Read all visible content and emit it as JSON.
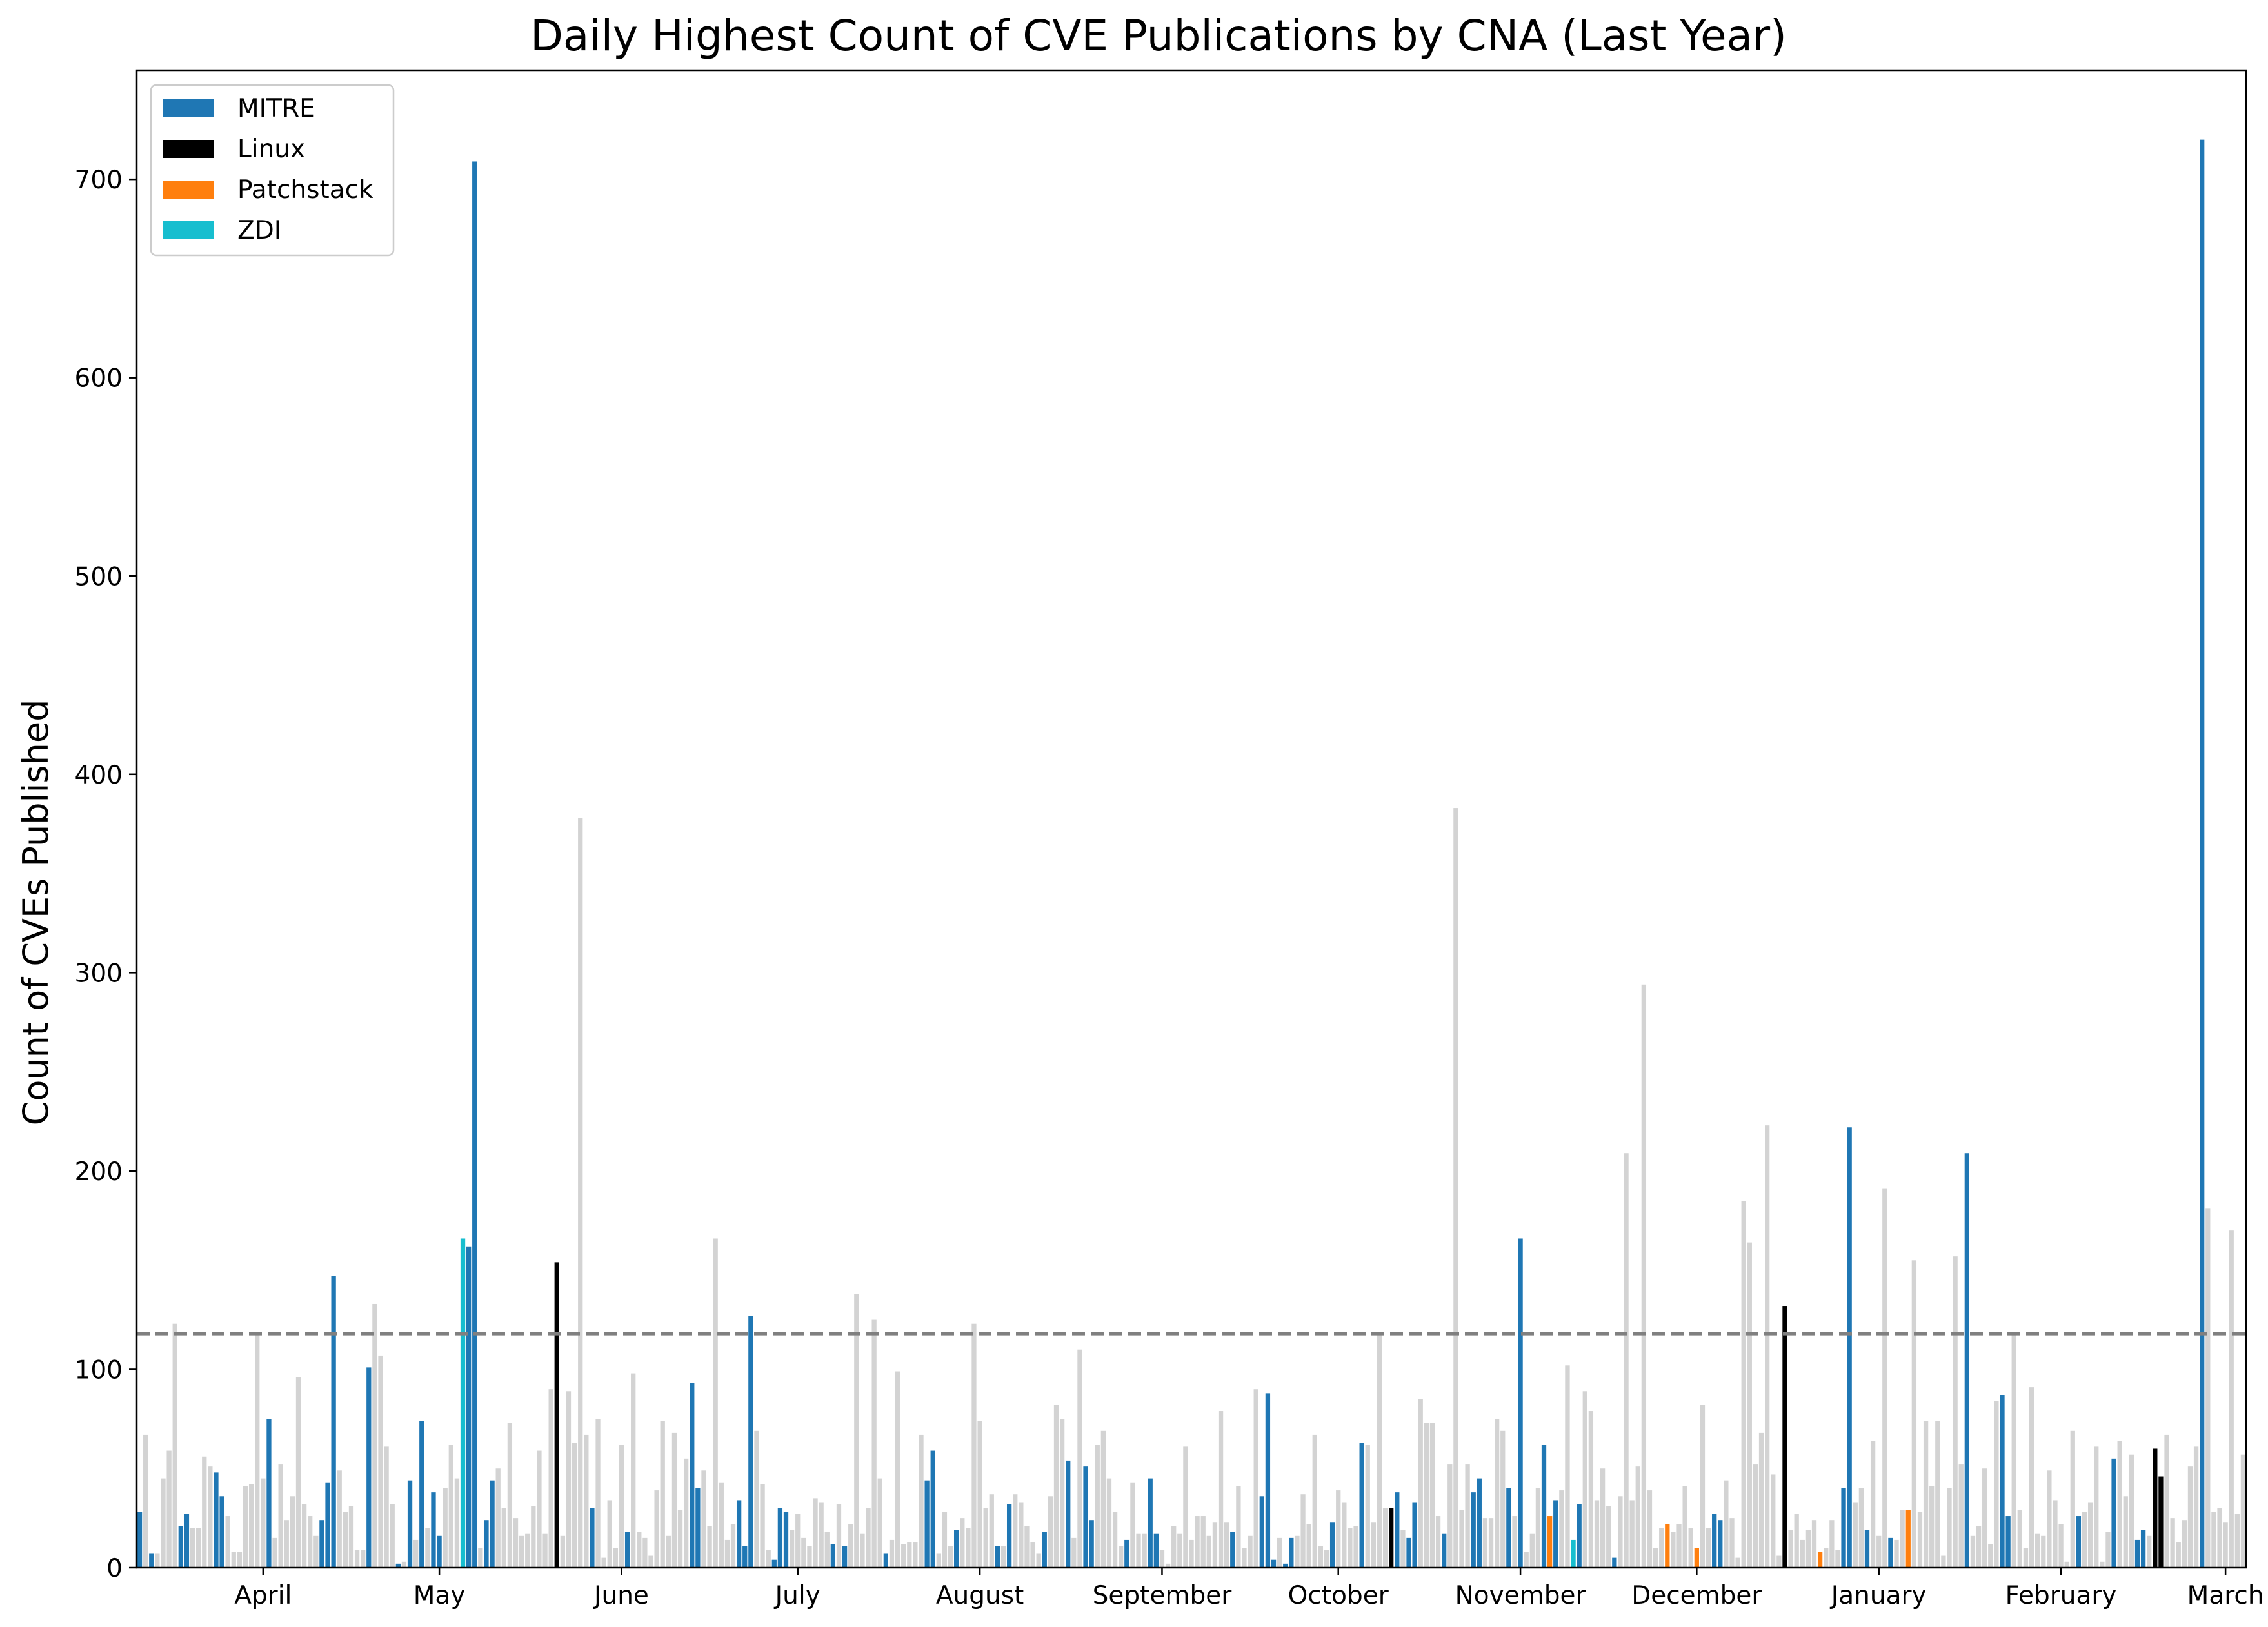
{
  "chart_data": {
    "type": "bar",
    "title": "Daily Highest Count of CVE Publications by CNA (Last Year)",
    "xlabel": "",
    "ylabel": "Count of CVEs Published",
    "ylim": [
      0,
      755
    ],
    "yticks": [
      0,
      100,
      200,
      300,
      400,
      500,
      600,
      700
    ],
    "month_ticks": [
      {
        "label": "April",
        "day": 21
      },
      {
        "label": "May",
        "day": 51
      },
      {
        "label": "June",
        "day": 82
      },
      {
        "label": "July",
        "day": 112
      },
      {
        "label": "August",
        "day": 143
      },
      {
        "label": "September",
        "day": 174
      },
      {
        "label": "October",
        "day": 204
      },
      {
        "label": "November",
        "day": 235
      },
      {
        "label": "December",
        "day": 265
      },
      {
        "label": "January",
        "day": 296
      },
      {
        "label": "February",
        "day": 327
      },
      {
        "label": "March",
        "day": 355
      }
    ],
    "threshold": {
      "value": 118,
      "style": "dashed",
      "color": "#808080"
    },
    "grid": false,
    "legend_position": "top-left",
    "legend": [
      {
        "label": "MITRE",
        "color": "#1f77b4"
      },
      {
        "label": "Linux",
        "color": "#000000"
      },
      {
        "label": "Patchstack",
        "color": "#ff7f0e"
      },
      {
        "label": "ZDI",
        "color": "#17becf"
      }
    ],
    "other_color": "#d3d3d3",
    "series_colors": {
      "M": "#1f77b4",
      "L": "#000000",
      "P": "#ff7f0e",
      "Z": "#17becf",
      "O": "#d3d3d3"
    },
    "values": [
      28,
      67,
      7,
      7,
      45,
      59,
      123,
      21,
      27,
      20,
      20,
      56,
      51,
      48,
      36,
      26,
      8,
      8,
      41,
      42,
      119,
      45,
      75,
      15,
      52,
      24,
      36,
      96,
      32,
      26,
      16,
      24,
      43,
      147,
      49,
      28,
      31,
      9,
      9,
      101,
      133,
      107,
      61,
      32,
      2,
      3,
      44,
      14,
      74,
      20,
      38,
      16,
      40,
      62,
      45,
      166,
      162,
      709,
      10,
      24,
      44,
      50,
      30,
      73,
      25,
      16,
      17,
      31,
      59,
      17,
      90,
      154,
      16,
      89,
      63,
      378,
      67,
      30,
      75,
      5,
      34,
      10,
      62,
      18,
      98,
      18,
      15,
      6,
      39,
      74,
      16,
      68,
      29,
      55,
      93,
      40,
      49,
      21,
      166,
      43,
      14,
      22,
      34,
      11,
      127,
      69,
      42,
      9,
      4,
      30,
      28,
      19,
      27,
      15,
      11,
      35,
      33,
      18,
      12,
      32,
      11,
      22,
      138,
      17,
      30,
      125,
      45,
      7,
      14,
      99,
      12,
      13,
      13,
      67,
      44,
      59,
      7,
      28,
      11,
      19,
      25,
      20,
      123,
      74,
      30,
      37,
      11,
      11,
      32,
      37,
      33,
      21,
      13,
      7,
      18,
      36,
      82,
      75,
      54,
      15,
      110,
      51,
      24,
      62,
      69,
      45,
      28,
      11,
      14,
      43,
      17,
      17,
      45,
      17,
      9,
      2,
      21,
      17,
      61,
      14,
      26,
      26,
      16,
      23,
      79,
      23,
      18,
      41,
      10,
      16,
      90,
      36,
      88,
      4,
      15,
      2,
      15,
      16,
      37,
      22,
      67,
      11,
      9,
      23,
      39,
      33,
      20,
      21,
      63,
      62,
      23,
      118,
      30,
      30,
      38,
      19,
      15,
      33,
      85,
      73,
      73,
      26,
      17,
      52,
      383,
      29,
      52,
      38,
      45,
      25,
      25,
      75,
      69,
      40,
      26,
      166,
      8,
      17,
      40,
      62,
      26,
      34,
      39,
      102,
      14,
      32,
      89,
      79,
      34,
      50,
      31,
      5,
      36,
      209,
      34,
      51,
      294,
      39,
      10,
      20,
      22,
      18,
      22,
      41,
      20,
      10,
      82,
      20,
      27,
      24,
      44,
      25,
      5,
      185,
      164,
      52,
      68,
      223,
      47,
      6,
      132,
      19,
      27,
      14,
      19,
      24,
      8,
      10,
      24,
      9,
      40,
      222,
      33,
      40,
      19,
      64,
      16,
      191,
      15,
      14,
      29,
      29,
      155,
      28,
      74,
      41,
      74,
      6,
      40,
      157,
      52,
      209,
      16,
      21,
      50,
      12,
      84,
      87,
      26,
      119,
      29,
      10,
      91,
      17,
      16,
      49,
      34,
      22,
      3,
      69,
      26,
      28,
      33,
      61,
      3,
      18,
      55,
      64,
      36,
      57,
      14,
      19,
      16,
      60,
      46,
      67,
      25,
      13,
      24,
      51,
      61,
      720,
      181,
      28,
      30,
      23,
      170,
      27,
      57
    ],
    "cna": "MOMOOOOMMOOOOMMOOOOOOOMOOOOOOOOMMMOOOOOMOOOOMOMOMOMMOOOZMMOMMOOOOOOOOOOLOOOOOMOOOOOMOOOOOOOOOOMMOOOOOOMMMOOOMMMOOOOOOOMOMOOOOOOMOOOOOOMMOOOMOOOOOOMOMOOOOOMOOOMOOMMOOOOOMOOOMMOOOOOOOOOOOOMOOOOMMMOMMOOOOOOMOOOOMOOOOLMOMMOOOOMOOOOMMOOOOMOMOOOMPMOOZMOOOOOMOOOOOOOOPOOOOPOOMMOOOOOOOOOOLOOOOOPOOOMMOOMOOOMOOPOOOOOOOOOMOOOOOMMOOOOOOOOOOOMOOOOOMOOOMMOLLOOOOOOM"
  }
}
